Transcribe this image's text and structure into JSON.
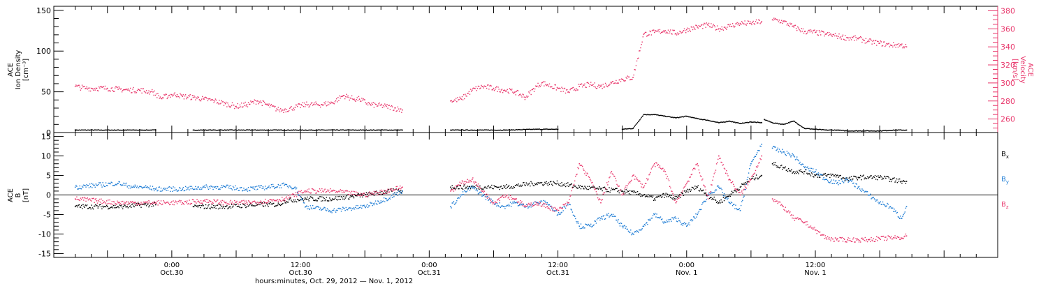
{
  "chart_data": [
    {
      "type": "scatter",
      "panel": "top",
      "ylabel": [
        "ACE",
        "Ion Density",
        "[cm⁻³]"
      ],
      "ylabel_right": [
        "ACE",
        "Velocity",
        "[km/s]"
      ],
      "ylim": [
        0,
        155
      ],
      "yticks": [
        "0",
        "50",
        "100",
        "150"
      ],
      "ylim_right": [
        245,
        385
      ],
      "yticks_right": [
        "260",
        "280",
        "300",
        "320",
        "340",
        "360",
        "380"
      ],
      "series": [
        {
          "axis": "left",
          "color": "#000000",
          "x": [
            -18,
            -12,
            -9,
            -5,
            -3,
            4,
            10,
            16,
            20,
            21,
            25,
            30,
            36,
            41,
            43,
            52,
            56,
            62,
            68,
            72,
            84,
            86,
            88,
            90,
            92,
            94,
            96,
            98,
            100,
            102,
            104,
            106,
            108,
            110
          ],
          "y": [
            3,
            3,
            3,
            3,
            3,
            3,
            3,
            3,
            3,
            3,
            3,
            3,
            3,
            3,
            3,
            3,
            3,
            3,
            4,
            4,
            4,
            5,
            22,
            22,
            20,
            18,
            20,
            17,
            15,
            12,
            14,
            11,
            13,
            12
          ]
        },
        {
          "axis": "left",
          "color": "#000000",
          "x": [
            110.5,
            112,
            114,
            116,
            118,
            120,
            122,
            124,
            126,
            128,
            130,
            132,
            135,
            137
          ],
          "y": [
            16,
            12,
            10,
            14,
            5,
            4,
            3,
            3,
            2,
            2,
            2,
            2,
            3,
            3
          ]
        },
        {
          "axis": "right",
          "color": "#e8356a",
          "x": [
            -18,
            -16,
            -14,
            -12,
            -10,
            -8,
            -6,
            -4,
            -3.5,
            -2,
            0,
            1,
            2,
            4,
            6,
            8,
            10,
            12,
            14,
            16,
            18,
            20,
            21,
            23,
            25,
            28,
            30,
            32,
            34,
            35,
            37,
            40,
            43
          ],
          "y": [
            296,
            294,
            294,
            294,
            293,
            292,
            292,
            290,
            290,
            283,
            287,
            287,
            285,
            284,
            282,
            280,
            277,
            274,
            276,
            280,
            275,
            270,
            270,
            273,
            276,
            276,
            278,
            286,
            282,
            282,
            276,
            274,
            270
          ]
        },
        {
          "axis": "right",
          "color": "#e8356a",
          "x": [
            52,
            54,
            56,
            58,
            60,
            62,
            64,
            66,
            68,
            69,
            70,
            72,
            74,
            76,
            78,
            80,
            82,
            84,
            86,
            88,
            90,
            92,
            94,
            96,
            98,
            100,
            102,
            104,
            106,
            108,
            110
          ],
          "y": [
            280,
            282,
            292,
            296,
            294,
            292,
            290,
            284,
            296,
            300,
            298,
            294,
            290,
            296,
            298,
            296,
            300,
            304,
            306,
            354,
            356,
            358,
            355,
            359,
            362,
            364,
            360,
            363,
            366,
            366,
            368
          ]
        },
        {
          "axis": "right",
          "color": "#e8356a",
          "x": [
            112,
            114,
            116,
            118,
            120,
            122,
            124,
            126,
            128,
            130,
            132,
            134,
            136,
            137
          ],
          "y": [
            370,
            368,
            362,
            357,
            356,
            354,
            352,
            350,
            349,
            346,
            344,
            342,
            342,
            340
          ]
        }
      ]
    },
    {
      "type": "scatter",
      "panel": "bottom",
      "ylabel": [
        "ACE",
        "B",
        "[nT]"
      ],
      "ylim": [
        -16,
        16
      ],
      "yticks": [
        "-15",
        "-10",
        "-5",
        "0",
        "5",
        "10",
        "15"
      ],
      "series": [
        {
          "name": "Bx",
          "color": "#000000",
          "x": [
            -18,
            -12,
            -9,
            -5,
            -3,
            4,
            10,
            16,
            20,
            21,
            25,
            30,
            36,
            41,
            43,
            52,
            56,
            62,
            68,
            72,
            76,
            80,
            84,
            88,
            90,
            92,
            94,
            96,
            98,
            100,
            102,
            104,
            106,
            108,
            110
          ],
          "y": [
            -3,
            -3,
            -3,
            -2.5,
            -2.5,
            -3,
            -3,
            -2.5,
            -2.5,
            -1.5,
            -1,
            -1,
            0,
            1,
            1,
            2,
            2,
            2,
            3,
            3,
            2,
            1.5,
            1,
            0,
            -1,
            0,
            -1,
            1,
            2,
            0,
            -2,
            0,
            2,
            4,
            5
          ]
        },
        {
          "name": "Bx",
          "color": "#000000",
          "x": [
            112,
            114,
            116,
            118,
            120,
            122,
            124,
            126,
            128,
            130,
            132,
            134,
            136,
            137
          ],
          "y": [
            8,
            7,
            6,
            6,
            5,
            5,
            5,
            4,
            4.5,
            4.5,
            4.5,
            4,
            3.5,
            3.5
          ]
        },
        {
          "name": "By",
          "color": "#1a7ad4",
          "x": [
            -18,
            -14,
            -10,
            -7,
            -5,
            -3,
            2,
            6,
            10,
            14,
            18,
            21,
            23,
            25,
            30,
            36,
            40,
            43
          ],
          "y": [
            2,
            2.5,
            3,
            2,
            2,
            1.5,
            1.5,
            2,
            2,
            1.5,
            2,
            2.5,
            2,
            -3,
            -4,
            -3,
            -1,
            1
          ]
        },
        {
          "name": "By",
          "color": "#1a7ad4",
          "x": [
            52,
            54,
            56,
            58,
            60,
            62,
            64,
            66,
            68,
            70,
            72,
            74,
            76,
            78,
            80,
            82,
            84,
            86,
            88,
            90,
            92,
            94,
            96,
            98,
            100,
            102,
            104,
            106,
            108,
            110
          ],
          "y": [
            -3,
            0,
            2,
            0,
            -2,
            -3,
            -2,
            -3,
            -2,
            -2,
            -5,
            -2,
            -8,
            -8,
            -6,
            -5,
            -8,
            -10,
            -8,
            -5,
            -7,
            -6,
            -8,
            -5,
            0,
            2,
            -2,
            -4,
            8,
            13
          ]
        },
        {
          "name": "By",
          "color": "#1a7ad4",
          "x": [
            112,
            114,
            116,
            118,
            120,
            122,
            124,
            126,
            128,
            130,
            132,
            134,
            136,
            137
          ],
          "y": [
            12,
            11,
            10,
            7,
            6,
            4,
            3,
            4,
            2,
            0,
            -2,
            -3,
            -6,
            -3
          ]
        },
        {
          "name": "Bz",
          "color": "#e8356a",
          "x": [
            -18,
            -14,
            -10,
            -7,
            -5,
            -3,
            2,
            6,
            10,
            14,
            18,
            21,
            23,
            25,
            30,
            36,
            40,
            43
          ],
          "y": [
            -1,
            -1.5,
            -2,
            -2,
            -2,
            -2,
            -2,
            -1.5,
            -2,
            -2,
            -1.5,
            -1,
            0,
            1,
            1,
            0,
            1,
            2
          ]
        },
        {
          "name": "Bz",
          "color": "#e8356a",
          "x": [
            52,
            54,
            56,
            58,
            60,
            62,
            64,
            66,
            68,
            70,
            72,
            74,
            76,
            78,
            80,
            82,
            84,
            86,
            88,
            90,
            92,
            94,
            96,
            98,
            100,
            102,
            104,
            106,
            108,
            110
          ],
          "y": [
            1,
            3,
            4,
            1,
            -2,
            0,
            -1,
            -3,
            -2,
            -3,
            -4,
            -2,
            8,
            4,
            -2,
            6,
            0,
            5,
            2,
            8,
            6,
            -2,
            3,
            8,
            -1,
            10,
            4,
            0,
            4,
            10
          ]
        },
        {
          "name": "Bz",
          "color": "#e8356a",
          "x": [
            112,
            114,
            116,
            118,
            120,
            122,
            124,
            126,
            128,
            130,
            132,
            134,
            136,
            137
          ],
          "y": [
            -1,
            -3,
            -6,
            -7,
            -9,
            -11,
            -11.5,
            -11.5,
            -11.5,
            -11.5,
            -11.2,
            -11,
            -11,
            -10.5
          ]
        }
      ],
      "legend": [
        {
          "label": "B",
          "sub": "x",
          "color": "#000000"
        },
        {
          "label": "B",
          "sub": "y",
          "color": "#1a7ad4"
        },
        {
          "label": "B",
          "sub": "z",
          "color": "#e8356a"
        }
      ]
    }
  ],
  "x_axis": {
    "xlim": [
      -22,
      154
    ],
    "major_ticks": [
      {
        "x": 0,
        "time": "0:00",
        "date": "Oct.30"
      },
      {
        "x": 24,
        "time": "12:00",
        "date": "Oct.30"
      },
      {
        "x": 48,
        "time": "0:00",
        "date": "Oct.31"
      },
      {
        "x": 72,
        "time": "12:00",
        "date": "Oct.31"
      },
      {
        "x": 96,
        "time": "0:00",
        "date": "Nov. 1"
      },
      {
        "x": 120,
        "time": "12:00",
        "date": "Nov. 1"
      }
    ],
    "label": "hours:minutes, Oct. 29, 2012 — Nov.  1, 2012"
  },
  "colors": {
    "magenta": "#e8356a",
    "blue": "#1a7ad4",
    "black": "#000000"
  }
}
